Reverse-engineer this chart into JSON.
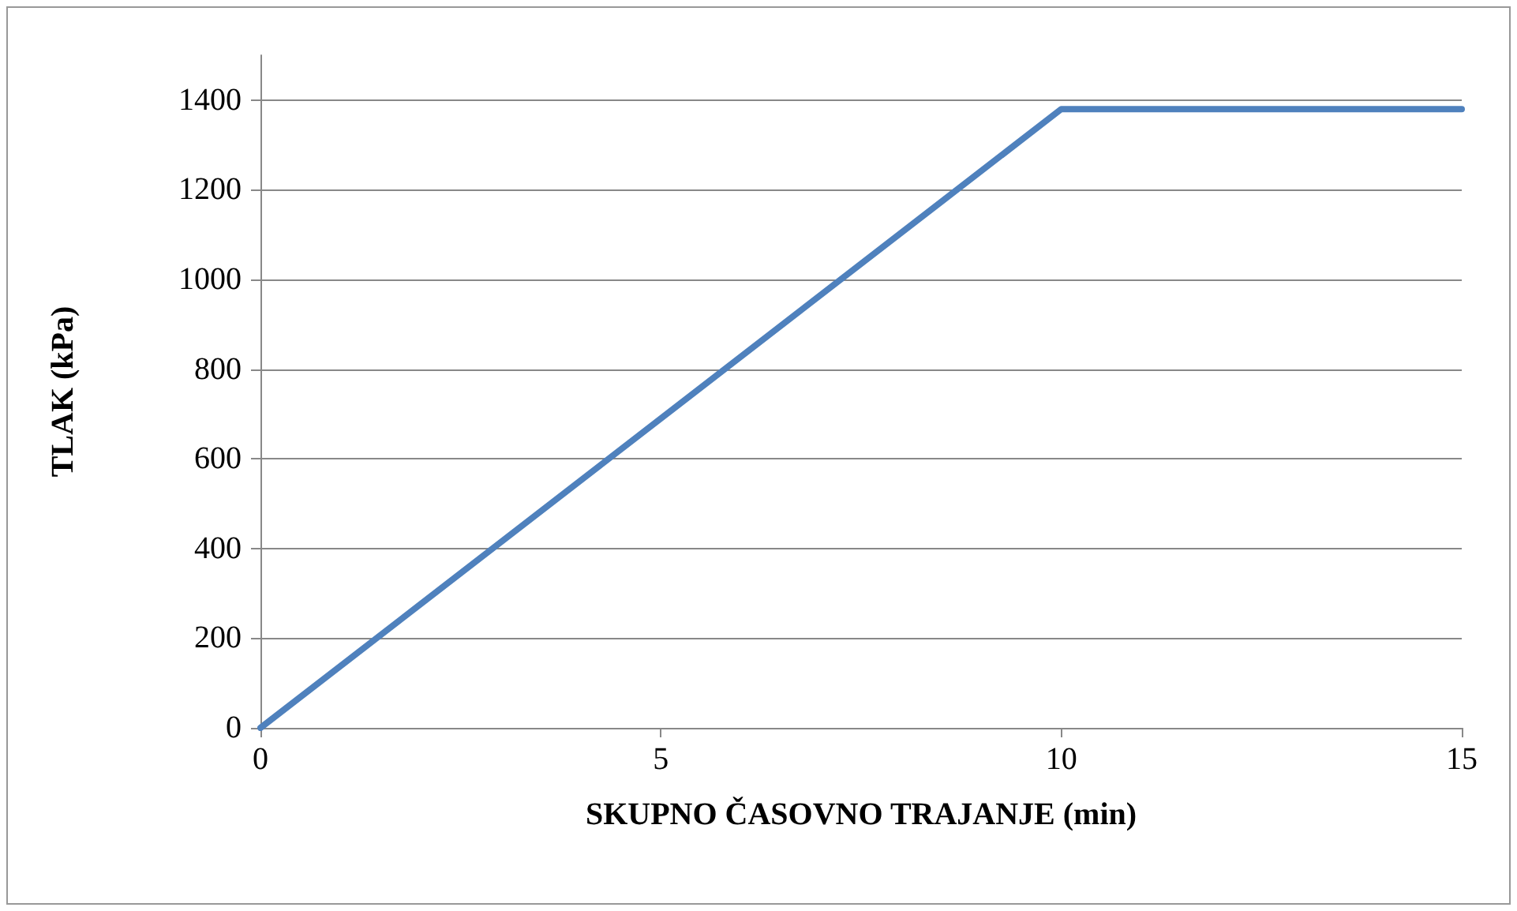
{
  "chart_data": {
    "type": "line",
    "xlabel": "SKUPNO ČASOVNO TRAJANJE (min)",
    "ylabel": "TLAK (kPa)",
    "x": [
      0,
      10,
      15
    ],
    "series": [
      {
        "color": "#4f81bd",
        "values": [
          0,
          1380,
          1380
        ]
      }
    ],
    "xlim": [
      0,
      15
    ],
    "xticks": [
      0,
      5,
      10,
      15
    ],
    "ylim": [
      0,
      1500
    ],
    "yticks": [
      0,
      200,
      400,
      600,
      800,
      1000,
      1200,
      1400
    ],
    "grid": "y",
    "marker": "none",
    "line_style": "solid"
  }
}
